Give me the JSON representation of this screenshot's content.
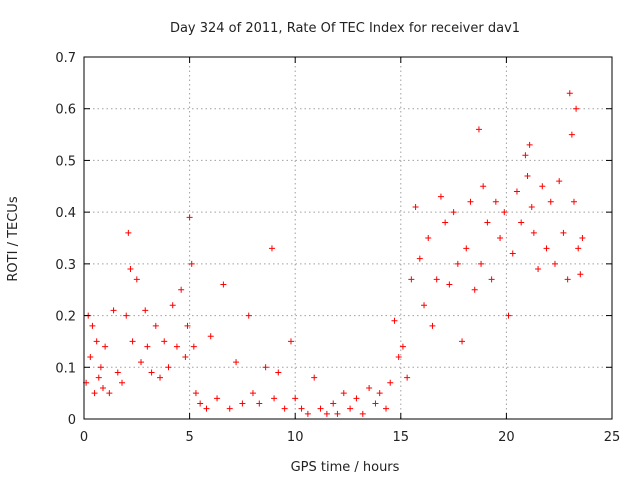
{
  "chart_data": {
    "type": "scatter",
    "title": "Day 324 of 2011, Rate Of TEC Index for receiver dav1",
    "xlabel": "GPS time / hours",
    "ylabel": "ROTI / TECUs",
    "xlim": [
      0,
      25
    ],
    "ylim": [
      0,
      0.7
    ],
    "xticks": [
      "0",
      "5",
      "10",
      "15",
      "20",
      "25"
    ],
    "yticks": [
      "0",
      "0.1",
      "0.2",
      "0.3",
      "0.4",
      "0.5",
      "0.6",
      "0.7"
    ],
    "grid": true,
    "marker": "plus",
    "color": "#ff0000",
    "series": [
      {
        "x": [
          0.1,
          0.2,
          0.3,
          0.4,
          0.5,
          0.6,
          0.7,
          0.8,
          0.9,
          1.0,
          1.2,
          1.4,
          1.6,
          1.8,
          2.0,
          2.1,
          2.2,
          2.3,
          2.5,
          2.7,
          2.9,
          3.0,
          3.2,
          3.4,
          3.6,
          3.8,
          4.0,
          4.2,
          4.4,
          4.6,
          4.8,
          4.9,
          5.0,
          5.1,
          5.2,
          5.3,
          5.5,
          5.8,
          6.0,
          6.3,
          6.6,
          6.9,
          7.2,
          7.5,
          7.8,
          8.0,
          8.3,
          8.6,
          8.9,
          9.0,
          9.2,
          9.5,
          9.8,
          10.0,
          10.3,
          10.6,
          10.9,
          11.2,
          11.5,
          11.8,
          12.0,
          12.3,
          12.6,
          12.9,
          13.2,
          13.5,
          13.8,
          14.0,
          14.3,
          14.5,
          14.7,
          14.9,
          15.1,
          15.3,
          15.5,
          15.7,
          15.9,
          16.1,
          16.3,
          16.5,
          16.7,
          16.9,
          17.1,
          17.3,
          17.5,
          17.7,
          17.9,
          18.1,
          18.3,
          18.5,
          18.7,
          18.8,
          18.9,
          19.1,
          19.3,
          19.5,
          19.7,
          19.9,
          20.1,
          20.3,
          20.5,
          20.7,
          20.9,
          21.0,
          21.1,
          21.2,
          21.3,
          21.5,
          21.7,
          21.9,
          22.1,
          22.3,
          22.5,
          22.7,
          22.9,
          23.0,
          23.1,
          23.2,
          23.3,
          23.4,
          23.5,
          23.6
        ],
        "y": [
          0.07,
          0.2,
          0.12,
          0.18,
          0.05,
          0.15,
          0.08,
          0.1,
          0.06,
          0.14,
          0.05,
          0.21,
          0.09,
          0.07,
          0.2,
          0.36,
          0.29,
          0.15,
          0.27,
          0.11,
          0.21,
          0.14,
          0.09,
          0.18,
          0.08,
          0.15,
          0.1,
          0.22,
          0.14,
          0.25,
          0.12,
          0.18,
          0.39,
          0.3,
          0.14,
          0.05,
          0.03,
          0.02,
          0.16,
          0.04,
          0.26,
          0.02,
          0.11,
          0.03,
          0.2,
          0.05,
          0.03,
          0.1,
          0.33,
          0.04,
          0.09,
          0.02,
          0.15,
          0.04,
          0.02,
          0.01,
          0.08,
          0.02,
          0.01,
          0.03,
          0.01,
          0.05,
          0.02,
          0.04,
          0.01,
          0.06,
          0.03,
          0.05,
          0.02,
          0.07,
          0.19,
          0.12,
          0.14,
          0.08,
          0.27,
          0.41,
          0.31,
          0.22,
          0.35,
          0.18,
          0.27,
          0.43,
          0.38,
          0.26,
          0.4,
          0.3,
          0.15,
          0.33,
          0.42,
          0.25,
          0.56,
          0.3,
          0.45,
          0.38,
          0.27,
          0.42,
          0.35,
          0.4,
          0.2,
          0.32,
          0.44,
          0.38,
          0.51,
          0.47,
          0.53,
          0.41,
          0.36,
          0.29,
          0.45,
          0.33,
          0.42,
          0.3,
          0.46,
          0.36,
          0.27,
          0.63,
          0.55,
          0.42,
          0.6,
          0.33,
          0.28,
          0.35
        ]
      }
    ]
  }
}
